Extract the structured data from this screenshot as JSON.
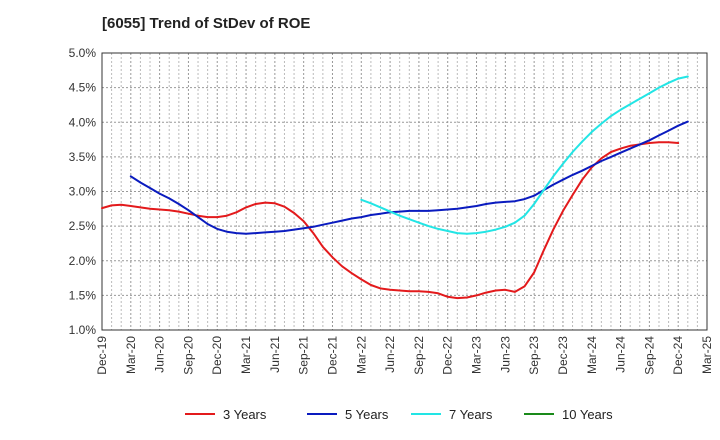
{
  "chart_data": {
    "type": "line",
    "title": "[6055]  Trend of StDev of ROE",
    "xlabel": "",
    "ylabel": "",
    "x_ticks": [
      "Dec-19",
      "Mar-20",
      "Jun-20",
      "Sep-20",
      "Dec-20",
      "Mar-21",
      "Jun-21",
      "Sep-21",
      "Dec-21",
      "Mar-22",
      "Jun-22",
      "Sep-22",
      "Dec-22",
      "Mar-23",
      "Jun-23",
      "Sep-23",
      "Dec-23",
      "Mar-24",
      "Jun-24",
      "Sep-24",
      "Dec-24",
      "Mar-25"
    ],
    "y_ticks": [
      "1.0%",
      "1.5%",
      "2.0%",
      "2.5%",
      "3.0%",
      "3.5%",
      "4.0%",
      "4.5%",
      "5.0%"
    ],
    "ylim": [
      1.0,
      5.0
    ],
    "y_unit": "%",
    "grid": true,
    "legend_position": "bottom",
    "series": [
      {
        "name": "3 Years",
        "color": "#e31a1c",
        "points": [
          [
            "Dec-19",
            2.76
          ],
          [
            "Jan-20",
            2.8
          ],
          [
            "Feb-20",
            2.81
          ],
          [
            "Mar-20",
            2.79
          ],
          [
            "Apr-20",
            2.77
          ],
          [
            "May-20",
            2.75
          ],
          [
            "Jun-20",
            2.74
          ],
          [
            "Jul-20",
            2.73
          ],
          [
            "Aug-20",
            2.71
          ],
          [
            "Sep-20",
            2.68
          ],
          [
            "Oct-20",
            2.65
          ],
          [
            "Nov-20",
            2.63
          ],
          [
            "Dec-20",
            2.63
          ],
          [
            "Jan-21",
            2.65
          ],
          [
            "Feb-21",
            2.7
          ],
          [
            "Mar-21",
            2.77
          ],
          [
            "Apr-21",
            2.82
          ],
          [
            "May-21",
            2.84
          ],
          [
            "Jun-21",
            2.83
          ],
          [
            "Jul-21",
            2.78
          ],
          [
            "Aug-21",
            2.69
          ],
          [
            "Sep-21",
            2.57
          ],
          [
            "Oct-21",
            2.4
          ],
          [
            "Nov-21",
            2.2
          ],
          [
            "Dec-21",
            2.05
          ],
          [
            "Jan-22",
            1.92
          ],
          [
            "Feb-22",
            1.82
          ],
          [
            "Mar-22",
            1.73
          ],
          [
            "Apr-22",
            1.65
          ],
          [
            "May-22",
            1.6
          ],
          [
            "Jun-22",
            1.58
          ],
          [
            "Jul-22",
            1.57
          ],
          [
            "Aug-22",
            1.56
          ],
          [
            "Sep-22",
            1.56
          ],
          [
            "Oct-22",
            1.55
          ],
          [
            "Nov-22",
            1.53
          ],
          [
            "Dec-22",
            1.48
          ],
          [
            "Jan-23",
            1.46
          ],
          [
            "Feb-23",
            1.47
          ],
          [
            "Mar-23",
            1.5
          ],
          [
            "Apr-23",
            1.54
          ],
          [
            "May-23",
            1.57
          ],
          [
            "Jun-23",
            1.58
          ],
          [
            "Jul-23",
            1.55
          ],
          [
            "Aug-23",
            1.63
          ],
          [
            "Sep-23",
            1.83
          ],
          [
            "Oct-23",
            2.15
          ],
          [
            "Nov-23",
            2.45
          ],
          [
            "Dec-23",
            2.72
          ],
          [
            "Jan-24",
            2.95
          ],
          [
            "Feb-24",
            3.17
          ],
          [
            "Mar-24",
            3.35
          ],
          [
            "Apr-24",
            3.48
          ],
          [
            "May-24",
            3.57
          ],
          [
            "Jun-24",
            3.62
          ],
          [
            "Jul-24",
            3.66
          ],
          [
            "Aug-24",
            3.68
          ],
          [
            "Sep-24",
            3.7
          ],
          [
            "Oct-24",
            3.71
          ],
          [
            "Nov-24",
            3.71
          ],
          [
            "Dec-24",
            3.7
          ]
        ]
      },
      {
        "name": "5 Years",
        "color": "#0a1bbf",
        "points": [
          [
            "Mar-20",
            3.22
          ],
          [
            "Apr-20",
            3.13
          ],
          [
            "May-20",
            3.05
          ],
          [
            "Jun-20",
            2.97
          ],
          [
            "Jul-20",
            2.9
          ],
          [
            "Aug-20",
            2.82
          ],
          [
            "Sep-20",
            2.73
          ],
          [
            "Oct-20",
            2.63
          ],
          [
            "Nov-20",
            2.53
          ],
          [
            "Dec-20",
            2.46
          ],
          [
            "Jan-21",
            2.42
          ],
          [
            "Feb-21",
            2.4
          ],
          [
            "Mar-21",
            2.39
          ],
          [
            "Apr-21",
            2.4
          ],
          [
            "May-21",
            2.41
          ],
          [
            "Jun-21",
            2.42
          ],
          [
            "Jul-21",
            2.43
          ],
          [
            "Aug-21",
            2.45
          ],
          [
            "Sep-21",
            2.47
          ],
          [
            "Oct-21",
            2.49
          ],
          [
            "Nov-21",
            2.52
          ],
          [
            "Dec-21",
            2.55
          ],
          [
            "Jan-22",
            2.58
          ],
          [
            "Feb-22",
            2.61
          ],
          [
            "Mar-22",
            2.63
          ],
          [
            "Apr-22",
            2.66
          ],
          [
            "May-22",
            2.68
          ],
          [
            "Jun-22",
            2.7
          ],
          [
            "Jul-22",
            2.71
          ],
          [
            "Aug-22",
            2.72
          ],
          [
            "Sep-22",
            2.72
          ],
          [
            "Oct-22",
            2.72
          ],
          [
            "Nov-22",
            2.73
          ],
          [
            "Dec-22",
            2.74
          ],
          [
            "Jan-23",
            2.75
          ],
          [
            "Feb-23",
            2.77
          ],
          [
            "Mar-23",
            2.79
          ],
          [
            "Apr-23",
            2.82
          ],
          [
            "May-23",
            2.84
          ],
          [
            "Jun-23",
            2.85
          ],
          [
            "Jul-23",
            2.86
          ],
          [
            "Aug-23",
            2.89
          ],
          [
            "Sep-23",
            2.94
          ],
          [
            "Oct-23",
            3.02
          ],
          [
            "Nov-23",
            3.1
          ],
          [
            "Dec-23",
            3.17
          ],
          [
            "Jan-24",
            3.24
          ],
          [
            "Feb-24",
            3.3
          ],
          [
            "Mar-24",
            3.37
          ],
          [
            "Apr-24",
            3.44
          ],
          [
            "May-24",
            3.5
          ],
          [
            "Jun-24",
            3.56
          ],
          [
            "Jul-24",
            3.62
          ],
          [
            "Aug-24",
            3.68
          ],
          [
            "Sep-24",
            3.74
          ],
          [
            "Oct-24",
            3.81
          ],
          [
            "Nov-24",
            3.88
          ],
          [
            "Dec-24",
            3.95
          ],
          [
            "Jan-25",
            4.01
          ]
        ]
      },
      {
        "name": "7 Years",
        "color": "#22e5e5",
        "points": [
          [
            "Mar-22",
            2.88
          ],
          [
            "Apr-22",
            2.83
          ],
          [
            "May-22",
            2.77
          ],
          [
            "Jun-22",
            2.71
          ],
          [
            "Jul-22",
            2.65
          ],
          [
            "Aug-22",
            2.6
          ],
          [
            "Sep-22",
            2.55
          ],
          [
            "Oct-22",
            2.5
          ],
          [
            "Nov-22",
            2.46
          ],
          [
            "Dec-22",
            2.43
          ],
          [
            "Jan-23",
            2.4
          ],
          [
            "Feb-23",
            2.39
          ],
          [
            "Mar-23",
            2.4
          ],
          [
            "Apr-23",
            2.42
          ],
          [
            "May-23",
            2.45
          ],
          [
            "Jun-23",
            2.49
          ],
          [
            "Jul-23",
            2.55
          ],
          [
            "Aug-23",
            2.65
          ],
          [
            "Sep-23",
            2.82
          ],
          [
            "Oct-23",
            3.02
          ],
          [
            "Nov-23",
            3.22
          ],
          [
            "Dec-23",
            3.4
          ],
          [
            "Jan-24",
            3.57
          ],
          [
            "Feb-24",
            3.72
          ],
          [
            "Mar-24",
            3.86
          ],
          [
            "Apr-24",
            3.98
          ],
          [
            "May-24",
            4.09
          ],
          [
            "Jun-24",
            4.18
          ],
          [
            "Jul-24",
            4.26
          ],
          [
            "Aug-24",
            4.34
          ],
          [
            "Sep-24",
            4.42
          ],
          [
            "Oct-24",
            4.5
          ],
          [
            "Nov-24",
            4.57
          ],
          [
            "Dec-24",
            4.63
          ],
          [
            "Jan-25",
            4.66
          ]
        ]
      },
      {
        "name": "10 Years",
        "color": "#1a8a1a",
        "points": []
      }
    ]
  }
}
